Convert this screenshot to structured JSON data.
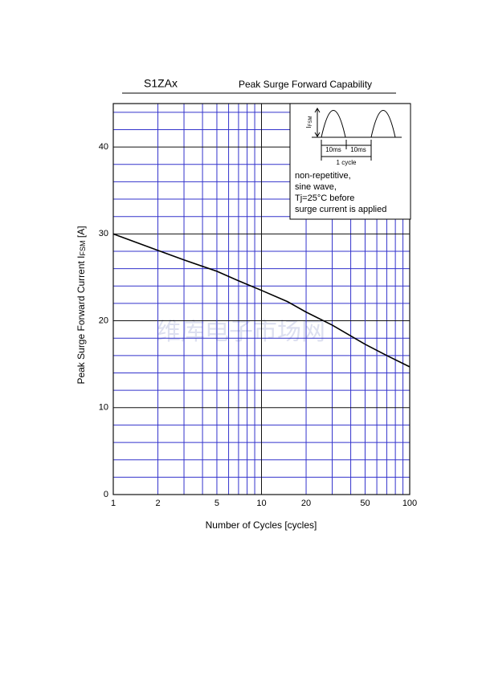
{
  "chart_data": {
    "type": "line",
    "part": "S1ZAx",
    "title": "Peak Surge Forward Capability",
    "xlabel": "Number of Cycles  [cycles]",
    "ylabel": {
      "text": "Peak Surge Forward Current  I",
      "sub": "FSM",
      "unit": " [A]"
    },
    "x": [
      1,
      2,
      3,
      5,
      7,
      10,
      15,
      20,
      30,
      50,
      70,
      100
    ],
    "values": [
      30,
      28.1,
      27,
      25.7,
      24.6,
      23.5,
      22.2,
      21,
      19.5,
      17.3,
      16,
      14.7
    ],
    "color": "#000000",
    "xlim": [
      1,
      100
    ],
    "xscale": "log",
    "xticks": [
      1,
      2,
      5,
      10,
      20,
      50,
      100
    ],
    "x_minor_grid": [
      3,
      4,
      6,
      7,
      8,
      9,
      30,
      40,
      60,
      70,
      80,
      90
    ],
    "ylim": [
      0,
      45
    ],
    "yticks": [
      0,
      10,
      20,
      30,
      40
    ],
    "y_minor_grid": [
      2,
      4,
      6,
      8,
      12,
      14,
      16,
      18,
      22,
      24,
      26,
      28,
      32,
      34,
      36,
      38,
      42,
      44
    ],
    "grid": true,
    "grid_color": "#3333cc",
    "inset": {
      "peak_label": {
        "text": "I",
        "sub": "FSM"
      },
      "half_period_1": "10ms",
      "half_period_2": "10ms",
      "cycle": "1 cycle",
      "notes": [
        "non-repetitive,",
        "sine wave,",
        "Tj=25°C before",
        "surge current is applied"
      ]
    },
    "watermark": "维库电子市场网"
  }
}
